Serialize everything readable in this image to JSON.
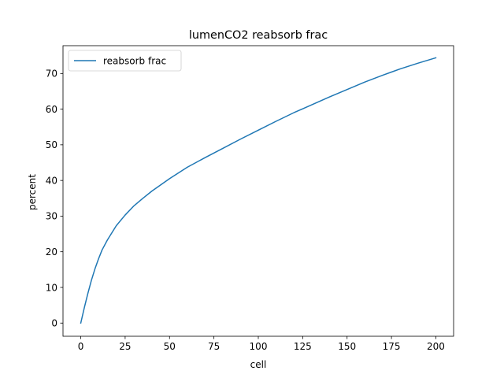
{
  "chart_data": {
    "type": "line",
    "title": "lumenCO2 reabsorb frac",
    "xlabel": "cell",
    "ylabel": "percent",
    "xlim": [
      -10,
      210
    ],
    "ylim": [
      -3.7,
      77.8
    ],
    "xticks": [
      0,
      25,
      50,
      75,
      100,
      125,
      150,
      175,
      200
    ],
    "yticks": [
      0,
      10,
      20,
      30,
      40,
      50,
      60,
      70
    ],
    "grid": false,
    "legend_position": "upper-left",
    "series": [
      {
        "name": "reabsorb frac",
        "color": "#1f77b4",
        "x": [
          0,
          2,
          4,
          6,
          8,
          10,
          12,
          15,
          20,
          25,
          30,
          35,
          40,
          50,
          60,
          70,
          75,
          80,
          90,
          100,
          110,
          120,
          125,
          130,
          140,
          150,
          160,
          170,
          175,
          180,
          190,
          200
        ],
        "y": [
          0,
          4.3,
          8.3,
          12.0,
          15.2,
          18.0,
          20.5,
          23.3,
          27.3,
          30.3,
          32.9,
          35.0,
          37.0,
          40.5,
          43.7,
          46.4,
          47.7,
          49.0,
          51.6,
          54.1,
          56.6,
          59.0,
          60.1,
          61.2,
          63.4,
          65.5,
          67.6,
          69.5,
          70.4,
          71.3,
          72.9,
          74.4
        ]
      }
    ]
  }
}
